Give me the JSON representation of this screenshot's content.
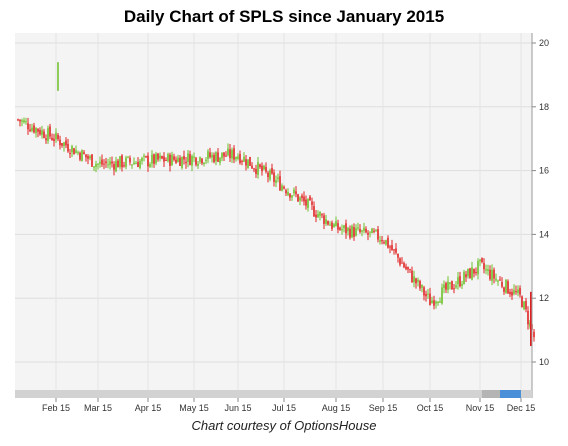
{
  "chart_data": {
    "type": "candlestick",
    "title": "Daily Chart of SPLS since January 2015",
    "caption": "Chart courtesy of OptionsHouse",
    "xlabel": "",
    "ylabel": "",
    "ylim": [
      9,
      20.3
    ],
    "y_ticks": [
      "10",
      "12",
      "14",
      "16",
      "18",
      "20"
    ],
    "x_ticks": [
      "Feb 15",
      "Mar 15",
      "Apr 15",
      "May 15",
      "Jun 15",
      "Jul 15",
      "Aug 15",
      "Sep 15",
      "Oct 15",
      "Nov 15",
      "Dec 15"
    ],
    "grid": true,
    "up_color": "#6cbf2a",
    "down_color": "#e02020",
    "key_closes": [
      {
        "x": "Jan 2015",
        "y": 17.6
      },
      {
        "x": "Feb 15",
        "y": 17.0
      },
      {
        "x": "Mar 15",
        "y": 16.2
      },
      {
        "x": "Apr 15",
        "y": 16.3
      },
      {
        "x": "May 15",
        "y": 16.4
      },
      {
        "x": "Jun 15",
        "y": 16.5
      },
      {
        "x": "Jul 15",
        "y": 15.5
      },
      {
        "x": "Aug 15",
        "y": 14.2
      },
      {
        "x": "Sep 15",
        "y": 13.9
      },
      {
        "x": "Oct 15",
        "y": 11.9
      },
      {
        "x": "Nov 15",
        "y": 13.0
      },
      {
        "x": "Dec 15",
        "y": 12.0
      },
      {
        "x": "Dec 2015",
        "y": 10.6
      }
    ],
    "spike": {
      "x": "Feb 2015",
      "high": 19.4,
      "low": 18.5
    }
  }
}
